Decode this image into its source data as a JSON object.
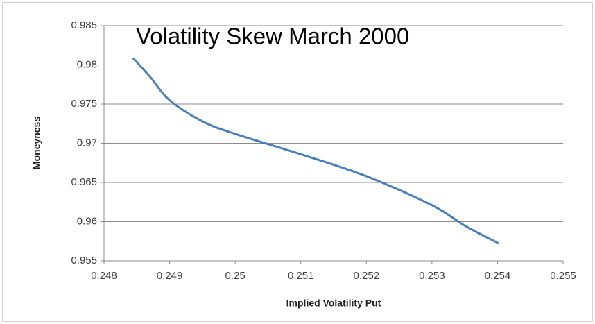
{
  "chart_data": {
    "type": "line",
    "title": "Volatility Skew March 2000",
    "x_label": "Implied Volatility  Put",
    "y_label": "Moneyness",
    "x": [
      0.24845,
      0.2487,
      0.249,
      0.2495,
      0.25,
      0.251,
      0.252,
      0.253,
      0.2535,
      0.254
    ],
    "series": [
      {
        "name": "Moneyness",
        "color": "#4a7ebb",
        "values": [
          0.9808,
          0.9785,
          0.9755,
          0.9728,
          0.9712,
          0.9686,
          0.9658,
          0.9621,
          0.9595,
          0.9573
        ]
      }
    ],
    "xlim": [
      0.248,
      0.255
    ],
    "xticks": [
      0.248,
      0.249,
      0.25,
      0.251,
      0.252,
      0.253,
      0.254,
      0.255
    ],
    "ylim": [
      0.955,
      0.985
    ],
    "yticks": [
      0.955,
      0.96,
      0.965,
      0.97,
      0.975,
      0.98,
      0.985
    ],
    "grid": true
  }
}
